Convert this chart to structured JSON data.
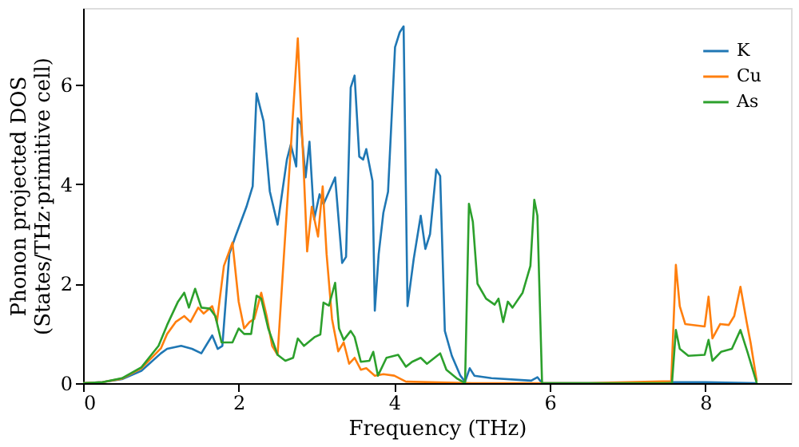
{
  "chart_data": {
    "type": "line",
    "xlabel": "Frequency (THz)",
    "ylabel": "Phonon projected DOS\n(States/THz·primitive cell)",
    "xlim": [
      0,
      9.1
    ],
    "ylim": [
      0,
      7.55
    ],
    "xticks": [
      0,
      2,
      4,
      6,
      8
    ],
    "yticks": [
      0,
      2,
      4,
      6
    ],
    "grid": false,
    "legend": "top right",
    "line_style": "solid",
    "marker": "none",
    "series": [
      {
        "name": "K",
        "color": "#1f77b4",
        "x": [
          0,
          0.25,
          0.5,
          0.75,
          1.0,
          1.08,
          1.26,
          1.4,
          1.52,
          1.66,
          1.73,
          1.79,
          1.88,
          1.96,
          2.1,
          2.18,
          2.23,
          2.32,
          2.4,
          2.5,
          2.62,
          2.67,
          2.74,
          2.76,
          2.8,
          2.86,
          2.91,
          2.97,
          3.04,
          3.09,
          3.24,
          3.33,
          3.38,
          3.44,
          3.49,
          3.55,
          3.6,
          3.64,
          3.72,
          3.75,
          3.8,
          3.86,
          3.92,
          4.01,
          4.07,
          4.12,
          4.17,
          4.25,
          4.34,
          4.4,
          4.46,
          4.54,
          4.59,
          4.65,
          4.74,
          4.85,
          4.91,
          4.97,
          5.03,
          5.25,
          5.76,
          5.84,
          5.9,
          6.5,
          7.0,
          7.6,
          8.0,
          8.66
        ],
        "values": [
          0,
          0.02,
          0.08,
          0.25,
          0.6,
          0.69,
          0.75,
          0.69,
          0.6,
          0.96,
          0.69,
          0.75,
          2.6,
          2.96,
          3.55,
          3.96,
          5.83,
          5.27,
          3.86,
          3.19,
          4.5,
          4.8,
          4.36,
          5.33,
          5.2,
          4.14,
          4.86,
          3.3,
          3.8,
          3.6,
          4.14,
          2.42,
          2.54,
          5.95,
          6.19,
          4.56,
          4.5,
          4.71,
          4.07,
          1.46,
          2.6,
          3.43,
          3.85,
          6.76,
          7.06,
          7.18,
          1.55,
          2.5,
          3.37,
          2.7,
          3.0,
          4.3,
          4.17,
          1.05,
          0.55,
          0.15,
          0.03,
          0.3,
          0.15,
          0.1,
          0.05,
          0.12,
          0,
          0,
          0,
          0.02,
          0.02,
          0
        ]
      },
      {
        "name": "Cu",
        "color": "#ff7f0e",
        "x": [
          0,
          0.25,
          0.5,
          0.75,
          1.0,
          1.08,
          1.19,
          1.3,
          1.38,
          1.48,
          1.55,
          1.66,
          1.72,
          1.81,
          1.92,
          2.0,
          2.07,
          2.14,
          2.2,
          2.29,
          2.36,
          2.43,
          2.5,
          2.76,
          2.84,
          2.88,
          2.94,
          3.02,
          3.08,
          3.13,
          3.2,
          3.28,
          3.35,
          3.42,
          3.49,
          3.57,
          3.64,
          3.75,
          3.86,
          4.0,
          4.15,
          5.0,
          6.5,
          7.56,
          7.62,
          7.67,
          7.74,
          7.99,
          8.04,
          8.09,
          8.19,
          8.3,
          8.37,
          8.45,
          8.53,
          8.58,
          8.66
        ],
        "values": [
          0,
          0.02,
          0.09,
          0.3,
          0.7,
          0.99,
          1.23,
          1.35,
          1.23,
          1.52,
          1.4,
          1.55,
          1.23,
          2.36,
          2.83,
          1.64,
          1.1,
          1.23,
          1.29,
          1.82,
          1.35,
          0.75,
          0.57,
          6.94,
          4.14,
          2.65,
          3.55,
          2.95,
          3.96,
          2.6,
          1.29,
          0.64,
          0.82,
          0.39,
          0.51,
          0.27,
          0.3,
          0.15,
          0.18,
          0.15,
          0.03,
          0,
          0,
          0.04,
          2.38,
          1.55,
          1.19,
          1.14,
          1.74,
          0.9,
          1.19,
          1.17,
          1.35,
          1.94,
          1.23,
          0.82,
          0.04
        ]
      },
      {
        "name": "As",
        "color": "#2ca02c",
        "x": [
          0,
          0.25,
          0.5,
          0.75,
          0.97,
          1.08,
          1.22,
          1.3,
          1.36,
          1.44,
          1.52,
          1.63,
          1.7,
          1.78,
          1.92,
          2.0,
          2.07,
          2.16,
          2.23,
          2.29,
          2.38,
          2.5,
          2.6,
          2.7,
          2.76,
          2.84,
          2.98,
          3.05,
          3.09,
          3.16,
          3.24,
          3.29,
          3.35,
          3.44,
          3.49,
          3.57,
          3.68,
          3.73,
          3.79,
          3.9,
          4.05,
          4.15,
          4.23,
          4.34,
          4.42,
          4.59,
          4.67,
          4.81,
          4.91,
          4.96,
          5.01,
          5.07,
          5.18,
          5.29,
          5.34,
          5.4,
          5.46,
          5.52,
          5.65,
          5.75,
          5.8,
          5.84,
          5.9,
          6.5,
          7.0,
          7.57,
          7.62,
          7.67,
          7.78,
          7.99,
          8.04,
          8.09,
          8.2,
          8.34,
          8.45,
          8.54,
          8.66
        ],
        "values": [
          0,
          0.02,
          0.1,
          0.32,
          0.75,
          1.17,
          1.64,
          1.82,
          1.52,
          1.9,
          1.52,
          1.5,
          1.35,
          0.82,
          0.82,
          1.1,
          0.99,
          0.99,
          1.76,
          1.7,
          1.1,
          0.57,
          0.45,
          0.51,
          0.9,
          0.75,
          0.93,
          0.98,
          1.62,
          1.56,
          2.02,
          1.1,
          0.87,
          1.05,
          0.93,
          0.43,
          0.45,
          0.63,
          0.15,
          0.51,
          0.57,
          0.33,
          0.43,
          0.51,
          0.39,
          0.6,
          0.27,
          0.09,
          0,
          3.61,
          3.25,
          2.0,
          1.7,
          1.58,
          1.7,
          1.23,
          1.64,
          1.52,
          1.82,
          2.36,
          3.69,
          3.37,
          0,
          0,
          0,
          0,
          1.07,
          0.69,
          0.55,
          0.57,
          0.87,
          0.45,
          0.63,
          0.69,
          1.07,
          0.63,
          0
        ]
      }
    ]
  }
}
